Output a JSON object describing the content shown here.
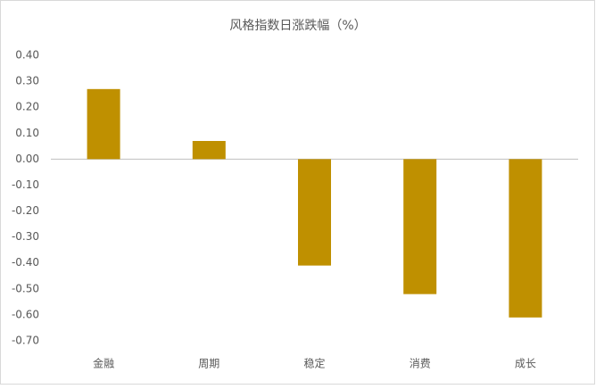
{
  "chart_data": {
    "type": "bar",
    "title": "风格指数日涨跌幅（%）",
    "categories": [
      "金融",
      "周期",
      "稳定",
      "消费",
      "成长"
    ],
    "values": [
      0.27,
      0.07,
      -0.41,
      -0.52,
      -0.61
    ],
    "color": "#bf9000",
    "ylim": [
      -0.7,
      0.4
    ],
    "yticks": [
      {
        "value": 0.4,
        "label": "0.40"
      },
      {
        "value": 0.3,
        "label": "0.30"
      },
      {
        "value": 0.2,
        "label": "0.20"
      },
      {
        "value": 0.1,
        "label": "0.10"
      },
      {
        "value": 0,
        "label": "0.00"
      },
      {
        "value": -0.1,
        "label": "-0.10"
      },
      {
        "value": -0.2,
        "label": "-0.20"
      },
      {
        "value": -0.3,
        "label": "-0.30"
      },
      {
        "value": -0.4,
        "label": "-0.40"
      },
      {
        "value": -0.5,
        "label": "-0.50"
      },
      {
        "value": -0.6,
        "label": "-0.60"
      },
      {
        "value": -0.7,
        "label": "-0.70"
      }
    ],
    "grid": false
  }
}
